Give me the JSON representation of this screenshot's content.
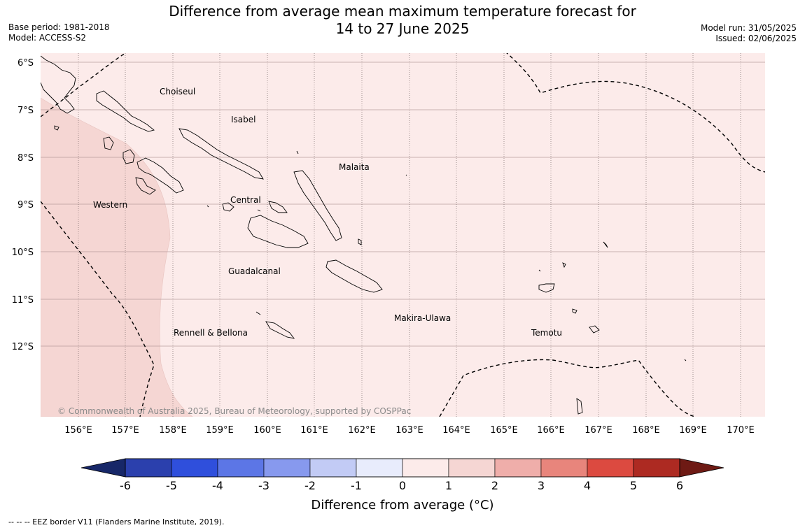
{
  "header": {
    "title_line1": "Difference from average mean maximum temperature forecast for",
    "title_line2": "14 to 27 June 2025",
    "base_period": "Base period: 1981-2018",
    "model": "Model: ACCESS-S2",
    "model_run": "Model run: 31/05/2025",
    "issued": "Issued: 02/06/2025"
  },
  "map": {
    "lat_labels": [
      "6°S",
      "7°S",
      "8°S",
      "9°S",
      "10°S",
      "11°S",
      "12°S"
    ],
    "lon_labels": [
      "156°E",
      "157°E",
      "158°E",
      "159°E",
      "160°E",
      "161°E",
      "162°E",
      "163°E",
      "164°E",
      "165°E",
      "166°E",
      "167°E",
      "168°E",
      "169°E",
      "170°E"
    ],
    "provinces": [
      "Choiseul",
      "Isabel",
      "Malaita",
      "Western",
      "Central",
      "Guadalcanal",
      "Makira-Ulawa",
      "Rennell & Bellona",
      "Temotu"
    ],
    "copyright": "© Commonwealth of Australia 2025, Bureau of Meteorology, supported by COSPPac",
    "base_anomaly_range": "0 to 1",
    "west_anomaly_range": "1 to 2"
  },
  "colorbar": {
    "label": "Difference from average (°C)",
    "ticks": [
      "-6",
      "-5",
      "-4",
      "-3",
      "-2",
      "-1",
      "0",
      "1",
      "2",
      "3",
      "4",
      "5",
      "6"
    ],
    "low_extend_color": "#172768",
    "high_extend_color": "#6e1a14",
    "colors": [
      "#2b40ad",
      "#2f4fdc",
      "#5c76e6",
      "#8799ee",
      "#c2cbf5",
      "#e8ecfc",
      "#fcebea",
      "#f5d6d3",
      "#efaeaa",
      "#e8857c",
      "#dc4a40",
      "#ad2a22"
    ]
  },
  "footer": {
    "eez_note": "--  --  -- EEZ border V11 (Flanders Marine Institute, 2019)."
  }
}
